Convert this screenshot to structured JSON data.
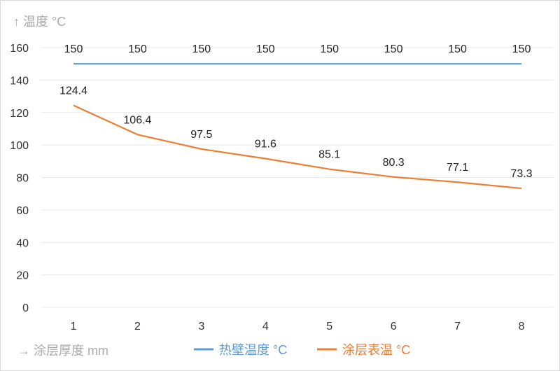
{
  "chart_data": {
    "type": "line",
    "title": "",
    "ylabel": "↑ 温度 °C",
    "xlabel": "→ 涂层厚度 mm",
    "categories": [
      "1",
      "2",
      "3",
      "4",
      "5",
      "6",
      "7",
      "8"
    ],
    "ylim": [
      0,
      160
    ],
    "yticks": [
      0,
      20,
      40,
      60,
      80,
      100,
      120,
      140,
      160
    ],
    "grid": true,
    "legend_position": "bottom",
    "series": [
      {
        "name": "热壁温度 °C",
        "color": "#5b9bd5",
        "values": [
          150,
          150,
          150,
          150,
          150,
          150,
          150,
          150
        ],
        "labels": [
          "150",
          "150",
          "150",
          "150",
          "150",
          "150",
          "150",
          "150"
        ]
      },
      {
        "name": "涂层表温 °C",
        "color": "#ed7d31",
        "values": [
          124.4,
          106.4,
          97.5,
          91.6,
          85.1,
          80.3,
          77.1,
          73.3
        ],
        "labels": [
          "124.4",
          "106.4",
          "97.5",
          "91.6",
          "85.1",
          "80.3",
          "77.1",
          "73.3"
        ]
      }
    ]
  }
}
